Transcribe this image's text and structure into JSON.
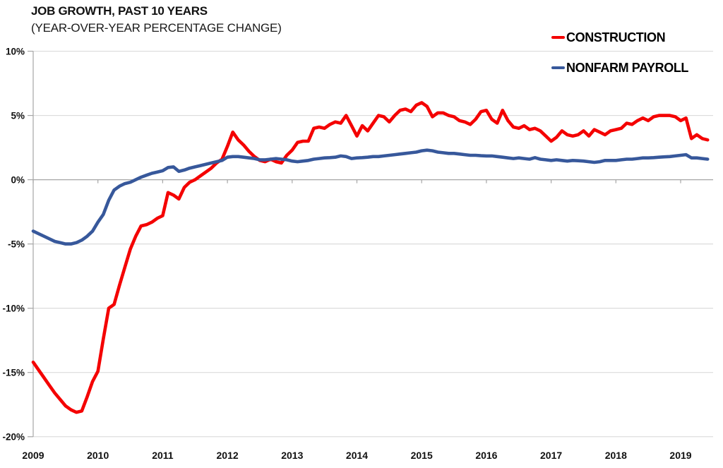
{
  "chart_data": {
    "type": "line",
    "title": "JOB GROWTH, PAST 10 YEARS",
    "subtitle": "(YEAR-OVER-YEAR PERCENTAGE CHANGE)",
    "frequency": "monthly",
    "x_start": "2009-01",
    "x_end": "2019-06",
    "x_tick_labels": [
      "2009",
      "2010",
      "2011",
      "2012",
      "2013",
      "2014",
      "2015",
      "2016",
      "2017",
      "2018",
      "2019"
    ],
    "y_tick_labels": [
      "10%",
      "5%",
      "0%",
      "-5%",
      "-10%",
      "-15%",
      "-20%"
    ],
    "y_tick_values": [
      10,
      5,
      0,
      -5,
      -10,
      -15,
      -20
    ],
    "ylim": [
      -20,
      10
    ],
    "grid": true,
    "legend_position": "top-right",
    "grid_color": "#dcdcdc",
    "axis_color": "#a6a6a6",
    "label_color": "#111111",
    "series": [
      {
        "name": "CONSTRUCTION",
        "color": "#f40000",
        "values": [
          -14.2,
          -14.8,
          -15.4,
          -16.0,
          -16.6,
          -17.1,
          -17.6,
          -17.9,
          -18.1,
          -18.0,
          -16.9,
          -15.7,
          -14.9,
          -12.4,
          -10.0,
          -9.7,
          -8.2,
          -6.8,
          -5.4,
          -4.4,
          -3.6,
          -3.5,
          -3.3,
          -3.0,
          -2.8,
          -1.0,
          -1.2,
          -1.5,
          -0.6,
          -0.2,
          0.0,
          0.3,
          0.6,
          0.9,
          1.3,
          1.6,
          2.6,
          3.7,
          3.1,
          2.7,
          2.2,
          1.8,
          1.5,
          1.4,
          1.6,
          1.4,
          1.3,
          1.9,
          2.3,
          2.9,
          3.0,
          3.0,
          4.0,
          4.1,
          4.0,
          4.3,
          4.5,
          4.4,
          5.0,
          4.2,
          3.4,
          4.2,
          3.8,
          4.4,
          5.0,
          4.9,
          4.5,
          5.0,
          5.4,
          5.5,
          5.3,
          5.8,
          6.0,
          5.7,
          4.9,
          5.2,
          5.2,
          5.0,
          4.9,
          4.6,
          4.5,
          4.3,
          4.7,
          5.3,
          5.4,
          4.7,
          4.4,
          5.4,
          4.6,
          4.1,
          4.0,
          4.2,
          3.9,
          4.0,
          3.8,
          3.4,
          3.0,
          3.3,
          3.8,
          3.5,
          3.4,
          3.5,
          3.8,
          3.4,
          3.9,
          3.7,
          3.5,
          3.8,
          3.9,
          4.0,
          4.4,
          4.3,
          4.6,
          4.8,
          4.6,
          4.9,
          5.0,
          5.0,
          5.0,
          4.9,
          4.6,
          4.8,
          3.2,
          3.5,
          3.2,
          3.1
        ]
      },
      {
        "name": "NONFARM PAYROLL",
        "color": "#37589b",
        "values": [
          -4.0,
          -4.2,
          -4.4,
          -4.6,
          -4.8,
          -4.9,
          -5.0,
          -5.0,
          -4.9,
          -4.7,
          -4.4,
          -4.0,
          -3.3,
          -2.7,
          -1.6,
          -0.8,
          -0.5,
          -0.3,
          -0.2,
          0.0,
          0.2,
          0.35,
          0.5,
          0.6,
          0.7,
          0.95,
          1.0,
          0.65,
          0.75,
          0.9,
          1.0,
          1.1,
          1.2,
          1.3,
          1.4,
          1.5,
          1.75,
          1.8,
          1.8,
          1.75,
          1.7,
          1.65,
          1.55,
          1.55,
          1.6,
          1.65,
          1.6,
          1.55,
          1.45,
          1.4,
          1.45,
          1.5,
          1.6,
          1.65,
          1.7,
          1.72,
          1.75,
          1.85,
          1.8,
          1.65,
          1.7,
          1.72,
          1.75,
          1.8,
          1.8,
          1.85,
          1.9,
          1.95,
          2.0,
          2.05,
          2.1,
          2.15,
          2.25,
          2.3,
          2.25,
          2.15,
          2.1,
          2.05,
          2.05,
          2.0,
          1.95,
          1.9,
          1.9,
          1.87,
          1.85,
          1.85,
          1.8,
          1.75,
          1.7,
          1.65,
          1.7,
          1.65,
          1.6,
          1.72,
          1.6,
          1.55,
          1.5,
          1.55,
          1.5,
          1.45,
          1.5,
          1.48,
          1.45,
          1.4,
          1.35,
          1.4,
          1.5,
          1.5,
          1.5,
          1.55,
          1.6,
          1.6,
          1.65,
          1.7,
          1.7,
          1.72,
          1.75,
          1.78,
          1.8,
          1.85,
          1.9,
          1.95,
          1.7,
          1.7,
          1.65,
          1.6
        ]
      }
    ]
  }
}
